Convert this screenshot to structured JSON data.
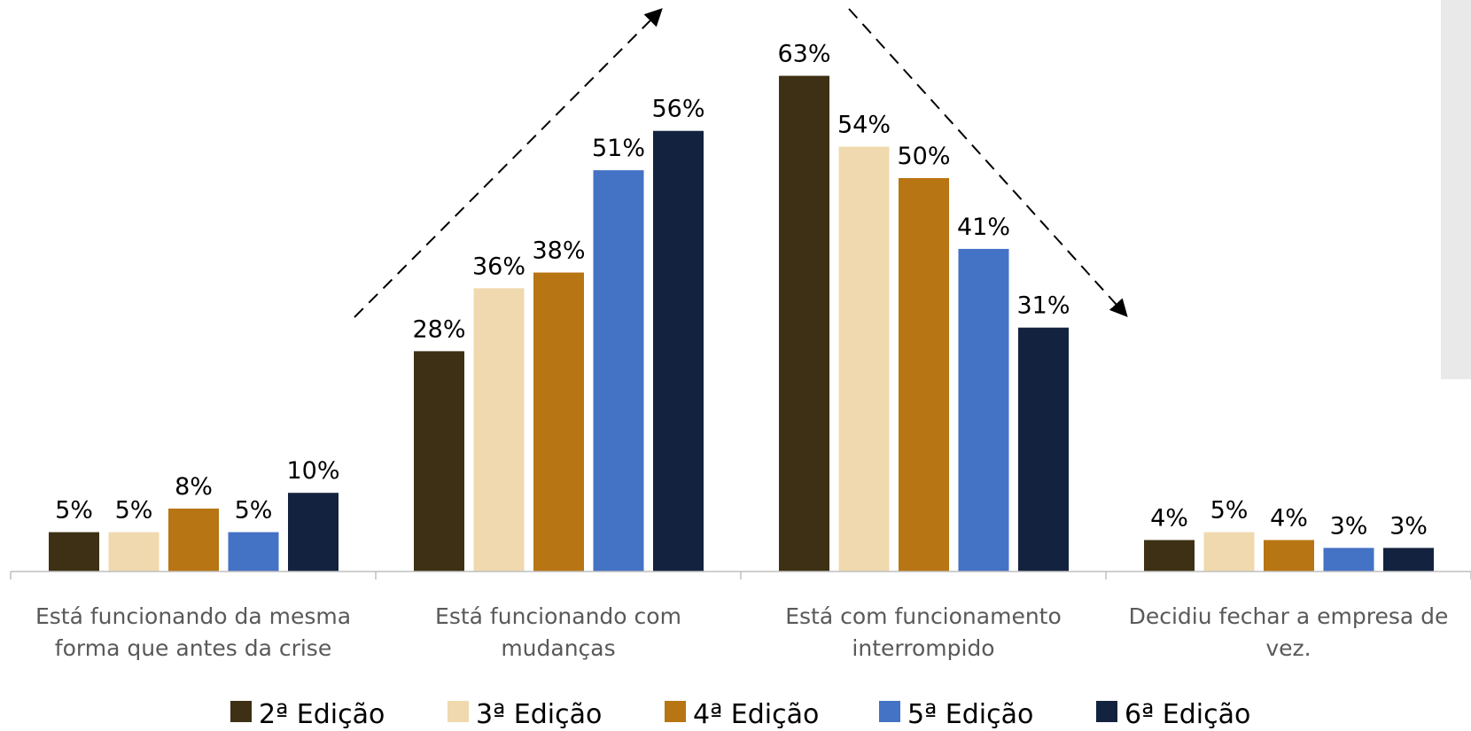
{
  "chart_data": {
    "type": "bar",
    "categories": [
      [
        "Está funcionando da mesma",
        "forma que antes da crise"
      ],
      [
        "Está funcionando com",
        "mudanças"
      ],
      [
        "Está com funcionamento",
        "interrompido"
      ],
      [
        "Decidiu fechar a empresa de",
        "vez."
      ]
    ],
    "series": [
      {
        "name": "2ª Edição",
        "color": "#3e3014",
        "values": [
          5,
          28,
          63,
          4
        ]
      },
      {
        "name": "3ª Edição",
        "color": "#f0d9ae",
        "values": [
          5,
          36,
          54,
          5
        ]
      },
      {
        "name": "4ª Edição",
        "color": "#b87513",
        "values": [
          8,
          38,
          50,
          4
        ]
      },
      {
        "name": "5ª Edição",
        "color": "#4472c4",
        "values": [
          5,
          51,
          41,
          3
        ]
      },
      {
        "name": "6ª Edição",
        "color": "#13233f",
        "values": [
          10,
          56,
          31,
          3
        ]
      }
    ],
    "value_suffix": "%",
    "ylim": [
      0,
      70
    ],
    "grid": false,
    "legend_position": "bottom",
    "annotations": [
      "dashed-arrow-up",
      "dashed-arrow-down"
    ]
  }
}
